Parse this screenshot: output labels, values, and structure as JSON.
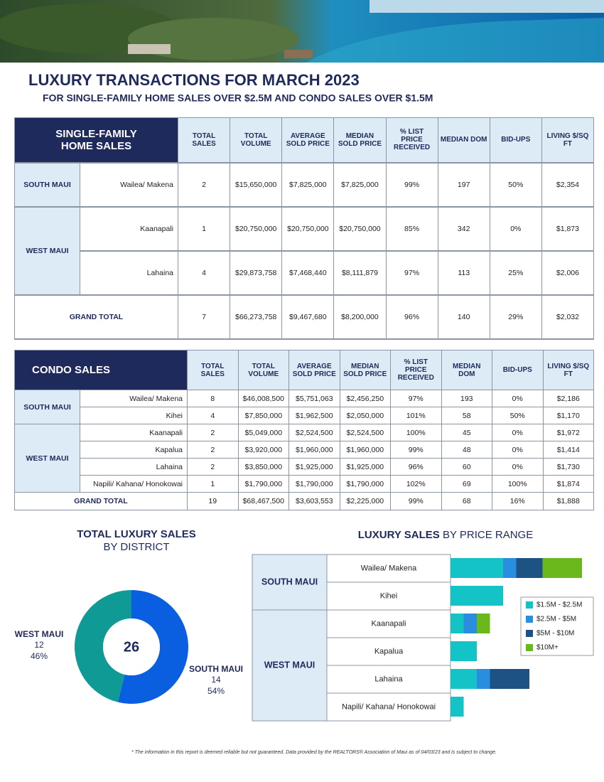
{
  "header": {
    "title": "LUXURY TRANSACTIONS FOR MARCH 2023",
    "subtitle": "FOR SINGLE-FAMILY HOME SALES OVER $2.5M AND CONDO SALES OVER $1.5M"
  },
  "sfh_table": {
    "title": "SINGLE-FAMILY HOME SALES",
    "columns": [
      "TOTAL SALES",
      "TOTAL VOLUME",
      "AVERAGE SOLD PRICE",
      "MEDIAN SOLD PRICE",
      "% LIST PRICE RECEIVED",
      "MEDIAN DOM",
      "BID-UPS",
      "LIVING $/SQ FT"
    ],
    "groups": [
      {
        "region": "SOUTH MAUI",
        "rows": [
          [
            "Wailea/ Makena",
            "2",
            "$15,650,000",
            "$7,825,000",
            "$7,825,000",
            "99%",
            "197",
            "50%",
            "$2,354"
          ]
        ]
      },
      {
        "region": "WEST MAUI",
        "rows": [
          [
            "Kaanapali",
            "1",
            "$20,750,000",
            "$20,750,000",
            "$20,750,000",
            "85%",
            "342",
            "0%",
            "$1,873"
          ],
          [
            "Lahaina",
            "4",
            "$29,873,758",
            "$7,468,440",
            "$8,111,879",
            "97%",
            "113",
            "25%",
            "$2,006"
          ]
        ]
      }
    ],
    "total": [
      "GRAND TOTAL",
      "7",
      "$66,273,758",
      "$9,467,680",
      "$8,200,000",
      "96%",
      "140",
      "29%",
      "$2,032"
    ]
  },
  "condo_table": {
    "title": "CONDO SALES",
    "columns": [
      "TOTAL SALES",
      "TOTAL VOLUME",
      "AVERAGE SOLD PRICE",
      "MEDIAN SOLD PRICE",
      "% LIST PRICE RECEIVED",
      "MEDIAN DOM",
      "BID-UPS",
      "LIVING $/SQ FT"
    ],
    "groups": [
      {
        "region": "SOUTH MAUI",
        "rows": [
          [
            "Wailea/ Makena",
            "8",
            "$46,008,500",
            "$5,751,063",
            "$2,456,250",
            "97%",
            "193",
            "0%",
            "$2,186"
          ],
          [
            "Kihei",
            "4",
            "$7,850,000",
            "$1,962,500",
            "$2,050,000",
            "101%",
            "58",
            "50%",
            "$1,170"
          ]
        ]
      },
      {
        "region": "WEST MAUI",
        "rows": [
          [
            "Kaanapali",
            "2",
            "$5,049,000",
            "$2,524,500",
            "$2,524,500",
            "100%",
            "45",
            "0%",
            "$1,972"
          ],
          [
            "Kapalua",
            "2",
            "$3,920,000",
            "$1,960,000",
            "$1,960,000",
            "99%",
            "48",
            "0%",
            "$1,414"
          ],
          [
            "Lahaina",
            "2",
            "$3,850,000",
            "$1,925,000",
            "$1,925,000",
            "96%",
            "60",
            "0%",
            "$1,730"
          ],
          [
            "Napili/ Kahana/ Honokowai",
            "1",
            "$1,790,000",
            "$1,790,000",
            "$1,790,000",
            "102%",
            "69",
            "100%",
            "$1,874"
          ]
        ]
      }
    ],
    "total": [
      "GRAND TOTAL",
      "19",
      "$68,467,500",
      "$3,603,553",
      "$2,225,000",
      "99%",
      "68",
      "16%",
      "$1,888"
    ]
  },
  "district_chart": {
    "type": "pie",
    "title": "TOTAL LUXURY SALES",
    "subtitle": "BY DISTRICT",
    "total": 26,
    "categories": [
      "SOUTH MAUI",
      "WEST MAUI"
    ],
    "values": [
      14,
      12
    ],
    "percent_labels": [
      "54%",
      "46%"
    ],
    "colors": [
      "#0a5fe0",
      "#0f9a96"
    ]
  },
  "price_chart": {
    "type": "bar",
    "stacked": true,
    "title_bold": "LUXURY SALES",
    "title_rest": "BY PRICE RANGE",
    "groups": [
      {
        "name": "SOUTH MAUI",
        "categories": [
          "Wailea/ Makena",
          "Kihei"
        ]
      },
      {
        "name": "WEST MAUI",
        "categories": [
          "Kaanapali",
          "Kapalua",
          "Lahaina",
          "Napili/ Kahana/ Honokowai"
        ]
      }
    ],
    "series": [
      {
        "name": "$1.5M - $2.5M",
        "color": "#13c3c5",
        "values": [
          4,
          4,
          1,
          2,
          2,
          1
        ]
      },
      {
        "name": "$2.5M - $5M",
        "color": "#2a8ee0",
        "values": [
          1,
          0,
          1,
          0,
          1,
          0
        ]
      },
      {
        "name": "$5M - $10M",
        "color": "#1c5384",
        "values": [
          2,
          0,
          0,
          0,
          3,
          0
        ]
      },
      {
        "name": "$10M+",
        "color": "#6bb81c",
        "values": [
          3,
          0,
          1,
          0,
          0,
          0
        ]
      }
    ]
  },
  "footer": "* The information in this report is deemed reliable but not guaranteed.  Data provided by the REALTORS® Association of Maui as of 04/03/23 and is subject to change."
}
